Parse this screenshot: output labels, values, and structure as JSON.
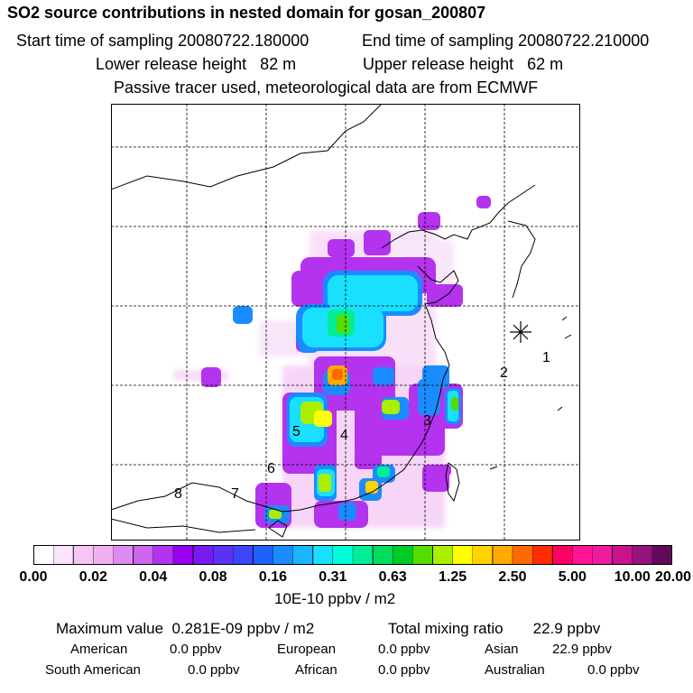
{
  "header": {
    "title": "SO2 source contributions in nested domain for gosan_200807",
    "start_time": "Start time of sampling 20080722.180000",
    "end_time": "End time of sampling 20080722.210000",
    "lower_height": "Lower release height   82 m",
    "upper_height": "Upper release height   62 m",
    "tracer_note": "Passive tracer used, meteorological data are from ECMWF"
  },
  "map": {
    "receptor_marker": "star-marker",
    "region_labels": [
      "1",
      "2",
      "3",
      "4",
      "5",
      "6",
      "7",
      "8"
    ],
    "frame_color": "#000000",
    "grid_style": "dashed"
  },
  "colorbar": {
    "colors": [
      "#ffffff",
      "#fbe3fb",
      "#f5c6f5",
      "#f1b0f1",
      "#dc8cf0",
      "#cc66ee",
      "#b433ee",
      "#9900ee",
      "#7a1af2",
      "#5a32f5",
      "#3c46f8",
      "#2060ff",
      "#1a8cff",
      "#1ab4ff",
      "#1ae0ff",
      "#00ffd8",
      "#00ee96",
      "#00dd5a",
      "#00cc28",
      "#55dd00",
      "#aaee00",
      "#ffff00",
      "#ffd200",
      "#ffaa00",
      "#ff6a00",
      "#ff2e00",
      "#ff0064",
      "#ff1493",
      "#ee1aa0",
      "#c8148c",
      "#96127d",
      "#640a5a"
    ],
    "tick_labels": [
      "0.00",
      "0.02",
      "0.04",
      "0.08",
      "0.16",
      "0.31",
      "0.63",
      "1.25",
      "2.50",
      "5.00",
      "10.00",
      "20.00"
    ],
    "units": "10E-10 ppbv / m2"
  },
  "summary": {
    "max_value": "Maximum value  0.281E-09 ppbv / m2",
    "total_mixing": "Total mixing ratio       22.9 ppbv",
    "regions": [
      {
        "label": "American",
        "value": "0.0 ppbv"
      },
      {
        "label": "European",
        "value": "0.0 ppbv"
      },
      {
        "label": "Asian",
        "value": "22.9 ppbv"
      },
      {
        "label": "South American",
        "value": "0.0 ppbv"
      },
      {
        "label": "African",
        "value": "0.0 ppbv"
      },
      {
        "label": "Australian",
        "value": "0.0 ppbv"
      }
    ]
  }
}
